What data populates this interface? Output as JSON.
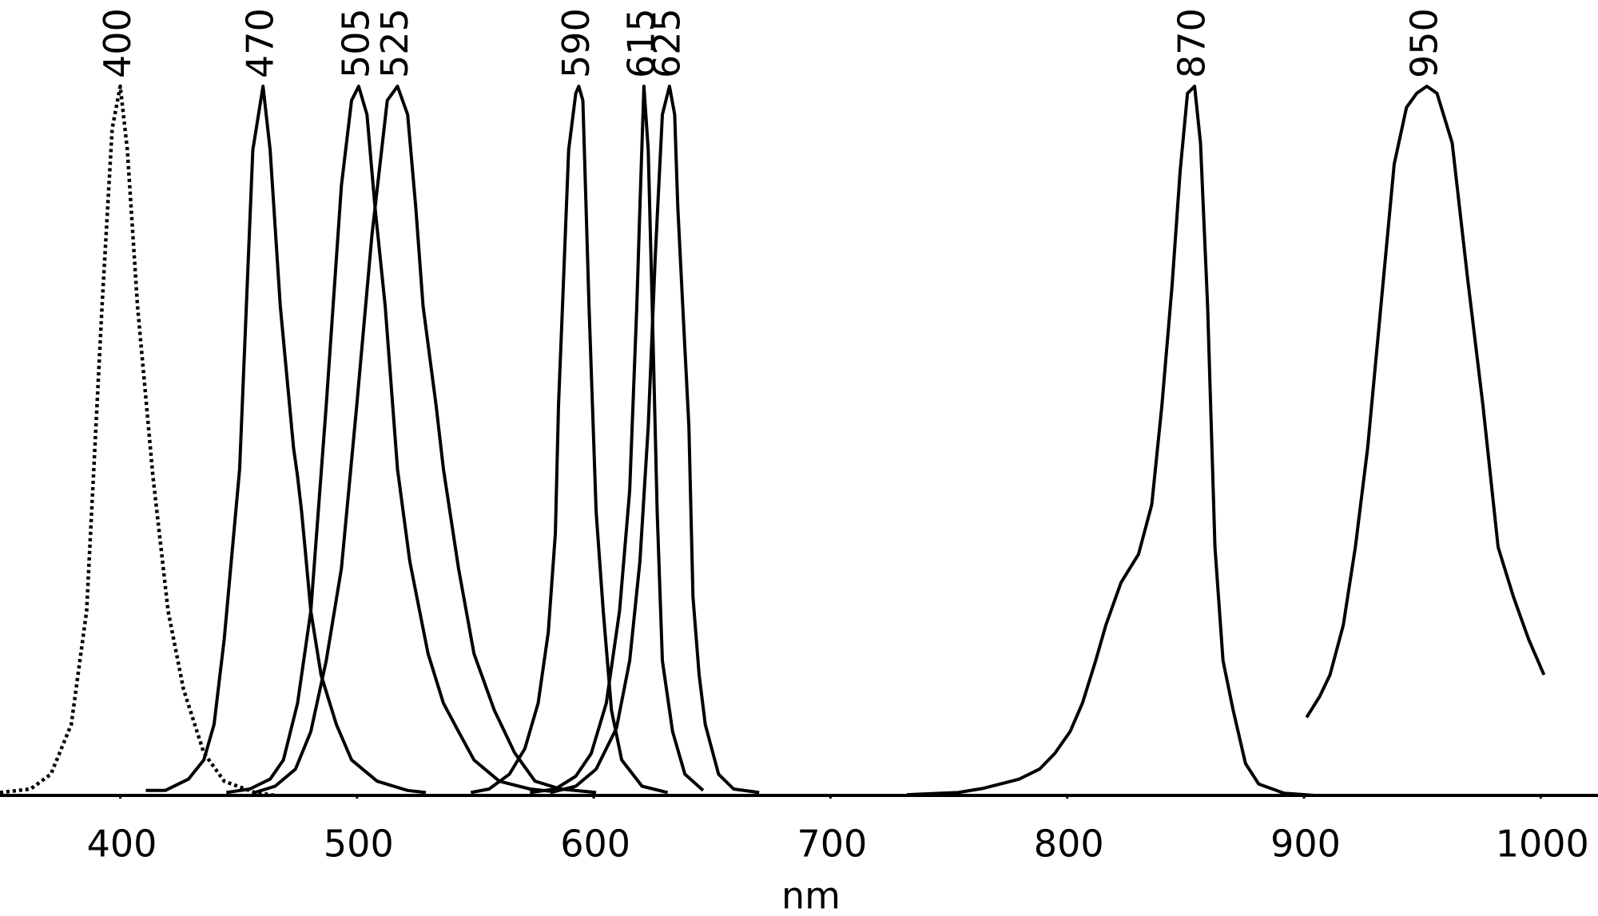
{
  "chart_data": {
    "type": "line",
    "xlabel": "nm",
    "xlim": [
      349.2,
      1024.2
    ],
    "xticks": [
      400,
      500,
      600,
      700,
      800,
      900,
      1000
    ],
    "ylim": [
      0,
      1
    ],
    "series": [
      {
        "name": "400",
        "color": "#000000",
        "dash": "dotted",
        "x": [
          349.2,
          362.1,
          370.7,
          379.3,
          385.8,
          392.3,
          396.6,
          400,
          403,
          407.3,
          413.8,
          420.2,
          426.7,
          435.3,
          443.9,
          456.8,
          465.4
        ],
        "values": [
          0.004,
          0.009,
          0.03,
          0.1,
          0.26,
          0.69,
          0.94,
          1.0,
          0.91,
          0.69,
          0.45,
          0.26,
          0.15,
          0.06,
          0.02,
          0.004,
          0
        ]
      },
      {
        "name": "470",
        "color": "#000000",
        "x": [
          410.8,
          419,
          428.8,
          435.3,
          439.6,
          443.9,
          450.4,
          456,
          460.3,
          463.3,
          467.6,
          473.2,
          474.9,
          476.6,
          478.3,
          480.5,
          484.8,
          491.3,
          497.7,
          508.5,
          521.4,
          529.1
        ],
        "values": [
          0.007,
          0.007,
          0.023,
          0.05,
          0.1,
          0.22,
          0.46,
          0.91,
          1.0,
          0.91,
          0.69,
          0.49,
          0.45,
          0.4,
          0.34,
          0.26,
          0.17,
          0.1,
          0.05,
          0.02,
          0.007,
          0.004
        ]
      },
      {
        "name": "505",
        "color": "#000000",
        "x": [
          444.8,
          454.7,
          463.3,
          468.9,
          474.9,
          480.5,
          487,
          493.4,
          497.7,
          500.7,
          504.2,
          507.6,
          511.9,
          517.1,
          522.3,
          530,
          536.5,
          542.9,
          549.4,
          560.1,
          573.1,
          581.7
        ],
        "values": [
          0.004,
          0.009,
          0.023,
          0.05,
          0.13,
          0.26,
          0.55,
          0.86,
          0.98,
          1.0,
          0.96,
          0.83,
          0.69,
          0.46,
          0.33,
          0.2,
          0.13,
          0.09,
          0.05,
          0.02,
          0.009,
          0.006
        ]
      },
      {
        "name": "525",
        "color": "#000000",
        "x": [
          456.8,
          465.4,
          474,
          480.5,
          487,
          493.4,
          499.9,
          506.3,
          512.8,
          517.1,
          521.4,
          524.8,
          527.9,
          533.4,
          536.5,
          542.9,
          549.4,
          558,
          566.6,
          575.2,
          586,
          601
        ],
        "values": [
          0.004,
          0.013,
          0.037,
          0.09,
          0.19,
          0.32,
          0.55,
          0.79,
          0.98,
          1.0,
          0.96,
          0.83,
          0.69,
          0.55,
          0.46,
          0.32,
          0.2,
          0.12,
          0.06,
          0.02,
          0.009,
          0.004
        ]
      },
      {
        "name": "590",
        "color": "#000000",
        "x": [
          548.1,
          555.8,
          564.4,
          570.9,
          576.5,
          580.8,
          583.8,
          585.1,
          586.8,
          589.4,
          592.4,
          593.7,
          595.4,
          598,
          601,
          604,
          607.5,
          611.8,
          620.4,
          631.2
        ],
        "values": [
          0.004,
          0.009,
          0.03,
          0.066,
          0.13,
          0.23,
          0.37,
          0.55,
          0.69,
          0.91,
          0.99,
          1.0,
          0.98,
          0.69,
          0.4,
          0.26,
          0.12,
          0.05,
          0.013,
          0.004
        ]
      },
      {
        "name": "615",
        "color": "#000000",
        "x": [
          573.1,
          583.8,
          592.4,
          598.9,
          605.3,
          610.9,
          615.2,
          618.2,
          619.5,
          621.2,
          623,
          624.7,
          626.8,
          629,
          633.3,
          638.5,
          646.2
        ],
        "values": [
          0.004,
          0.009,
          0.027,
          0.059,
          0.13,
          0.26,
          0.43,
          0.69,
          0.83,
          1.0,
          0.91,
          0.69,
          0.4,
          0.19,
          0.09,
          0.03,
          0.007
        ]
      },
      {
        "name": "625",
        "color": "#000000",
        "x": [
          581.7,
          592.4,
          601,
          609.6,
          615.2,
          619.5,
          623,
          626,
          629,
          632,
          634.2,
          635.5,
          637.6,
          640.2,
          641.9,
          644.5,
          647.1,
          652.7,
          659.1,
          669.9
        ],
        "values": [
          0.004,
          0.013,
          0.037,
          0.095,
          0.19,
          0.33,
          0.52,
          0.76,
          0.96,
          1.0,
          0.96,
          0.83,
          0.69,
          0.52,
          0.28,
          0.17,
          0.1,
          0.03,
          0.009,
          0.004
        ]
      },
      {
        "name": "870",
        "color": "#000000",
        "x": [
          732.3,
          753.9,
          764.6,
          779.7,
          788.3,
          794.7,
          801.2,
          806.4,
          812,
          816.3,
          822.7,
          830.1,
          835.7,
          840,
          844.3,
          847.7,
          850.8,
          853.8,
          856.3,
          859.3,
          862.4,
          865.8,
          870.1,
          875.3,
          880.9,
          891.6,
          904.5
        ],
        "values": [
          0.001,
          0.004,
          0.01,
          0.023,
          0.037,
          0.059,
          0.09,
          0.13,
          0.19,
          0.24,
          0.3,
          0.34,
          0.41,
          0.55,
          0.72,
          0.88,
          0.99,
          1.0,
          0.92,
          0.69,
          0.35,
          0.19,
          0.12,
          0.045,
          0.016,
          0.003,
          0
        ]
      },
      {
        "name": "950",
        "color": "#000000",
        "x": [
          901.1,
          906.7,
          911,
          916.6,
          921.7,
          926.9,
          932.5,
          938.1,
          943.3,
          947.6,
          951.9,
          956.2,
          962.6,
          969.1,
          975.6,
          982,
          988.5,
          994.9,
          1001.4
        ],
        "values": [
          0.11,
          0.14,
          0.17,
          0.24,
          0.35,
          0.49,
          0.69,
          0.89,
          0.97,
          0.99,
          1.0,
          0.99,
          0.92,
          0.73,
          0.55,
          0.35,
          0.28,
          0.22,
          0.17
        ]
      }
    ]
  }
}
